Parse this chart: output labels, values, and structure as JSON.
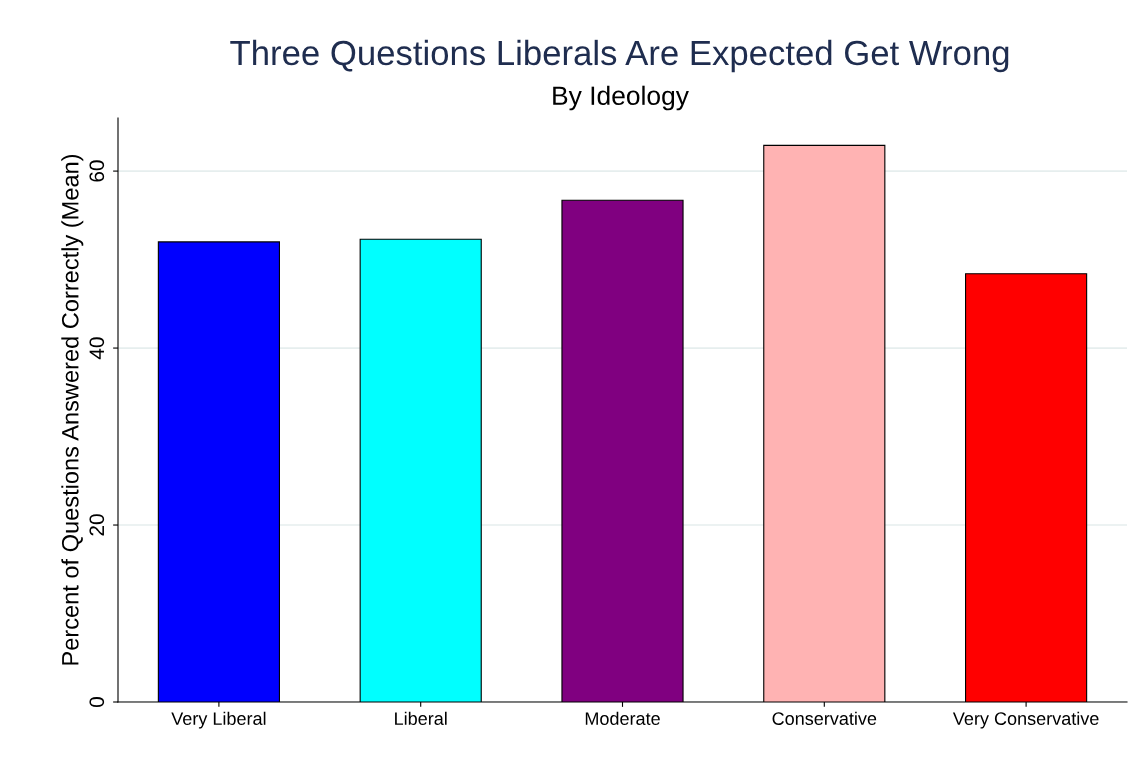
{
  "chart_data": {
    "type": "bar",
    "title": "Three Questions Liberals Are Expected Get Wrong",
    "subtitle": "By Ideology",
    "ylabel": "Percent of Questions Answered Correctly (Mean)",
    "categories": [
      "Very Liberal",
      "Liberal",
      "Moderate",
      "Conservative",
      "Very Conservative"
    ],
    "values": [
      52.0,
      52.3,
      56.7,
      62.9,
      48.4
    ],
    "colors": [
      "#0000ff",
      "#00ffff",
      "#800080",
      "#ffb3b3",
      "#ff0000"
    ],
    "ylim": [
      0,
      66
    ],
    "yticks": [
      0,
      20,
      40,
      60
    ],
    "grid": "y"
  }
}
